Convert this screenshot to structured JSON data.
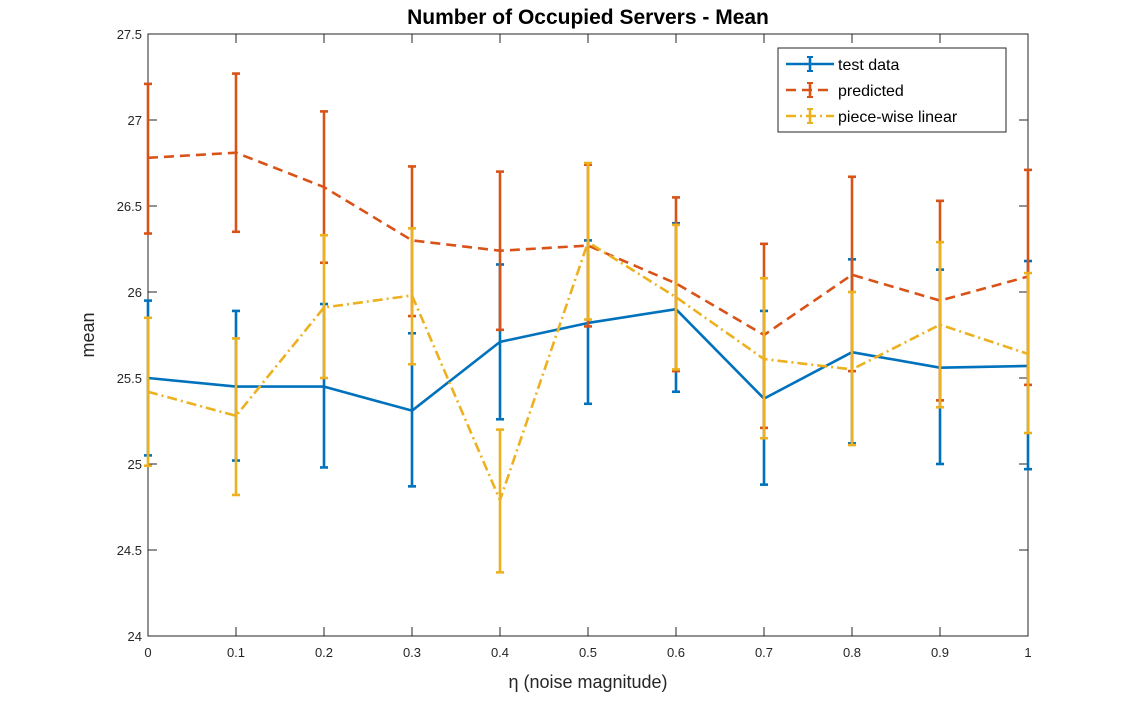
{
  "chart_data": {
    "type": "line",
    "title": "Number of Occupied Servers - Mean",
    "xlabel": "η (noise magnitude)",
    "ylabel": "mean",
    "x": [
      0,
      0.1,
      0.2,
      0.3,
      0.4,
      0.5,
      0.6,
      0.7,
      0.8,
      0.9,
      1
    ],
    "x_tick_labels": [
      "0",
      "0.1",
      "0.2",
      "0.3",
      "0.4",
      "0.5",
      "0.6",
      "0.7",
      "0.8",
      "0.9",
      "1"
    ],
    "y_tick_labels": [
      "24",
      "24.5",
      "25",
      "25.5",
      "26",
      "26.5",
      "27",
      "27.5"
    ],
    "y_ticks": [
      24,
      24.5,
      25,
      25.5,
      26,
      26.5,
      27,
      27.5
    ],
    "xlim": [
      0,
      1
    ],
    "ylim": [
      24,
      27.5
    ],
    "grid": false,
    "legend_position": "top-right",
    "error_bars": true,
    "series": [
      {
        "name": "test data",
        "color": "#0072BD",
        "line_style": "solid",
        "values": [
          25.5,
          25.45,
          25.45,
          25.31,
          25.71,
          25.82,
          25.9,
          25.38,
          25.65,
          25.56,
          25.57
        ],
        "err_low": [
          25.05,
          25.02,
          24.98,
          24.87,
          25.26,
          25.35,
          25.42,
          24.88,
          25.12,
          25.0,
          24.97
        ],
        "err_high": [
          25.95,
          25.89,
          25.93,
          25.76,
          26.16,
          26.3,
          26.4,
          25.89,
          26.19,
          26.13,
          26.18
        ]
      },
      {
        "name": "predicted",
        "color": "#D95319",
        "line_style": "dashed",
        "values": [
          26.78,
          26.81,
          26.61,
          26.3,
          26.24,
          26.27,
          26.05,
          25.75,
          26.1,
          25.95,
          26.09
        ],
        "err_low": [
          26.34,
          26.35,
          26.17,
          25.86,
          25.78,
          25.8,
          25.54,
          25.21,
          25.54,
          25.37,
          25.46
        ],
        "err_high": [
          27.21,
          27.27,
          27.05,
          26.73,
          26.7,
          26.74,
          26.55,
          26.28,
          26.67,
          26.53,
          26.71
        ]
      },
      {
        "name": "piece-wise linear",
        "color": "#EDB120",
        "line_style": "dashdot",
        "values": [
          25.42,
          25.28,
          25.91,
          25.98,
          24.79,
          26.29,
          25.97,
          25.61,
          25.55,
          25.81,
          25.64
        ],
        "err_low": [
          24.99,
          24.82,
          25.5,
          25.58,
          24.37,
          25.84,
          25.55,
          25.15,
          25.11,
          25.33,
          25.18
        ],
        "err_high": [
          25.85,
          25.73,
          26.33,
          26.37,
          25.2,
          26.75,
          26.39,
          26.08,
          26.0,
          26.29,
          26.11
        ]
      }
    ]
  }
}
